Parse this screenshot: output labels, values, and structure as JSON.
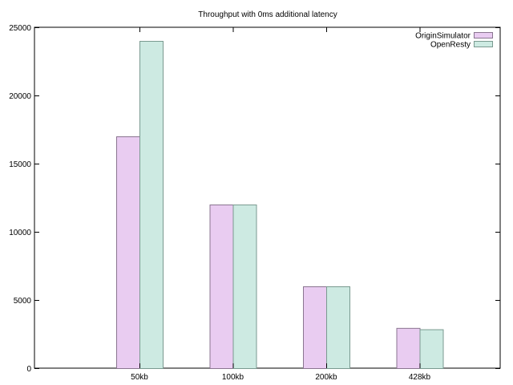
{
  "chart_data": {
    "type": "bar",
    "title": "Throughput with 0ms additional latency",
    "xlabel": "",
    "ylabel": "",
    "categories": [
      "50kb",
      "100kb",
      "200kb",
      "428kb"
    ],
    "series": [
      {
        "name": "OriginSimulator",
        "values": [
          17000,
          12000,
          6000,
          2950
        ],
        "color": "#e9ccf1",
        "stroke": "#8a7590"
      },
      {
        "name": "OpenResty",
        "values": [
          24000,
          12000,
          6000,
          2850
        ],
        "color": "#cdeae2",
        "stroke": "#7a9a90"
      }
    ],
    "ylim": [
      0,
      25000
    ],
    "yticks": [
      0,
      5000,
      10000,
      15000,
      20000,
      25000
    ],
    "grid": false,
    "legend_position": "top-right"
  }
}
